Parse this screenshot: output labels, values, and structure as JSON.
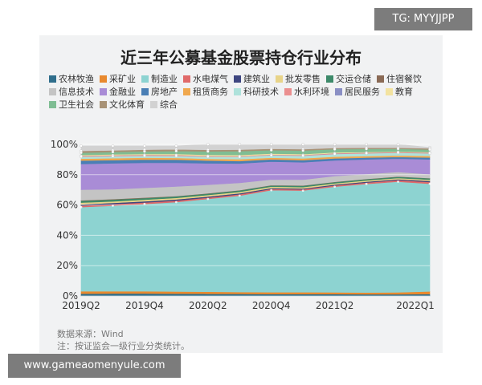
{
  "watermark_top": "TG: MYYJJPP",
  "watermark_bottom": "www.gameaomenyule.com",
  "footer": {
    "source": "数据来源：Wind",
    "note": "注：按证监会一级行业分类统计。"
  },
  "chart_data": {
    "type": "area",
    "stacked": true,
    "percent": true,
    "title": "近三年公募基金股票持仓行业分布",
    "xlabel": "",
    "ylabel": "",
    "ylim": [
      0,
      100
    ],
    "yticks": [
      "0%",
      "20%",
      "40%",
      "60%",
      "80%",
      "100%"
    ],
    "x": [
      "2019Q2",
      "2019Q3",
      "2019Q4",
      "2020Q1",
      "2020Q2",
      "2020Q3",
      "2020Q4",
      "2021Q1",
      "2021Q2",
      "2021Q3",
      "2021Q4",
      "2022Q1"
    ],
    "xtick_labels": [
      "2019Q2",
      "2019Q4",
      "2020Q2",
      "2020Q4",
      "2021Q2",
      "2022Q1"
    ],
    "xtick_indices": [
      0,
      2,
      4,
      6,
      8,
      11
    ],
    "grid": true,
    "legend_position": "top",
    "series": [
      {
        "name": "农林牧渔",
        "color": "#2f6e8c",
        "values": [
          1.5,
          1.6,
          1.6,
          1.5,
          1.4,
          1.3,
          1.2,
          1.2,
          1.2,
          1.1,
          1.1,
          1.2
        ]
      },
      {
        "name": "采矿业",
        "color": "#e8892e",
        "values": [
          1.6,
          1.5,
          1.5,
          1.4,
          1.4,
          1.3,
          1.3,
          1.3,
          1.2,
          1.2,
          1.3,
          1.8
        ]
      },
      {
        "name": "制造业",
        "color": "#8dd3d1",
        "values": [
          55.5,
          56.5,
          57.6,
          59.0,
          61.2,
          63.6,
          67.3,
          67.0,
          69.7,
          71.6,
          73.0,
          71.0
        ]
      },
      {
        "name": "水电煤气",
        "color": "#e06a6a",
        "values": [
          1.0,
          1.0,
          1.0,
          1.0,
          0.9,
          0.9,
          0.8,
          0.8,
          0.8,
          0.9,
          1.0,
          1.2
        ]
      },
      {
        "name": "建筑业",
        "color": "#3e4680",
        "values": [
          0.9,
          0.8,
          0.8,
          0.8,
          0.7,
          0.7,
          0.6,
          0.6,
          0.6,
          0.6,
          0.6,
          0.7
        ]
      },
      {
        "name": "批发零售",
        "color": "#e8d489",
        "values": [
          1.1,
          1.0,
          1.0,
          1.0,
          1.0,
          0.9,
          0.9,
          0.9,
          0.8,
          0.8,
          0.8,
          0.8
        ]
      },
      {
        "name": "交运仓储",
        "color": "#3d8a6a",
        "values": [
          1.2,
          1.2,
          1.1,
          1.0,
          0.9,
          0.9,
          0.8,
          0.9,
          0.8,
          0.8,
          0.8,
          0.9
        ]
      },
      {
        "name": "住宿餐饮",
        "color": "#8a6a55",
        "values": [
          0.3,
          0.3,
          0.3,
          0.2,
          0.2,
          0.2,
          0.2,
          0.2,
          0.2,
          0.2,
          0.2,
          0.2
        ]
      },
      {
        "name": "信息技术",
        "color": "#c4c4c4",
        "values": [
          7.0,
          6.5,
          6.4,
          6.3,
          5.7,
          4.8,
          3.7,
          3.8,
          3.8,
          3.3,
          3.0,
          2.5
        ]
      },
      {
        "name": "金融业",
        "color": "#a98cd6",
        "values": [
          17.0,
          17.1,
          16.6,
          15.7,
          14.1,
          12.8,
          11.8,
          11.5,
          10.3,
          9.6,
          8.8,
          9.8
        ]
      },
      {
        "name": "房地产",
        "color": "#4a7fb5",
        "values": [
          2.2,
          2.1,
          2.1,
          2.0,
          1.8,
          1.6,
          1.5,
          1.4,
          1.4,
          1.2,
          1.1,
          1.3
        ]
      },
      {
        "name": "租赁商务",
        "color": "#f0a84e",
        "values": [
          1.3,
          1.3,
          1.2,
          1.2,
          1.2,
          1.2,
          1.1,
          1.2,
          1.1,
          1.0,
          1.0,
          1.0
        ]
      },
      {
        "name": "科研技术",
        "color": "#aee2db",
        "values": [
          1.3,
          1.3,
          1.3,
          1.3,
          1.4,
          1.6,
          1.6,
          1.7,
          1.8,
          1.8,
          1.8,
          1.7
        ]
      },
      {
        "name": "水利环境",
        "color": "#eb8f8f",
        "values": [
          0.5,
          0.5,
          0.5,
          0.5,
          0.4,
          0.4,
          0.4,
          0.4,
          0.4,
          0.4,
          0.4,
          0.4
        ]
      },
      {
        "name": "居民服务",
        "color": "#8a8fc4",
        "values": [
          0.1,
          0.1,
          0.1,
          0.1,
          0.1,
          0.1,
          0.1,
          0.1,
          0.1,
          0.1,
          0.1,
          0.1
        ]
      },
      {
        "name": "教育",
        "color": "#f3e3a0",
        "values": [
          0.5,
          0.6,
          0.6,
          0.7,
          0.7,
          0.7,
          0.6,
          0.6,
          0.5,
          0.4,
          0.3,
          0.3
        ]
      },
      {
        "name": "卫生社会",
        "color": "#7fbd93",
        "values": [
          1.5,
          1.6,
          1.7,
          1.9,
          2.3,
          2.5,
          2.3,
          2.3,
          2.1,
          2.0,
          1.8,
          1.7
        ]
      },
      {
        "name": "文化体育",
        "color": "#a89276",
        "values": [
          1.2,
          1.1,
          1.1,
          1.1,
          1.0,
          1.0,
          0.9,
          0.9,
          0.8,
          0.8,
          0.7,
          0.8
        ]
      },
      {
        "name": "综合",
        "color": "#d2d2d2",
        "values": [
          3.3,
          2.9,
          2.5,
          2.3,
          3.6,
          3.5,
          2.9,
          3.2,
          2.4,
          2.3,
          2.2,
          0.6
        ]
      }
    ]
  }
}
